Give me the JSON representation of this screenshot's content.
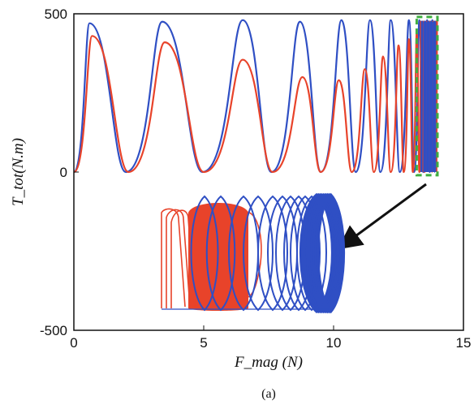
{
  "chart_data": {
    "type": "line",
    "caption": "(a)",
    "xlabel": "F_mag (N)",
    "ylabel": "T_tot(N.m)",
    "xlim": [
      0,
      15
    ],
    "ylim": [
      -500,
      500
    ],
    "x_ticks": [
      "0",
      "5",
      "10",
      "15"
    ],
    "y_ticks": [
      "500",
      "0",
      "-500"
    ],
    "grid": false,
    "series": [
      {
        "color": "#2f4fc4",
        "peaks_x": [
          0.6,
          3.4,
          6.5,
          8.7,
          10.3,
          11.4,
          12.2,
          12.9,
          13.3,
          13.6,
          13.8
        ],
        "peaks_y": [
          470,
          475,
          480,
          475,
          480,
          480,
          480,
          480,
          480,
          480,
          480
        ],
        "valleys_y": [
          0,
          0,
          0,
          0,
          0,
          0,
          0,
          0,
          0,
          0,
          0
        ]
      },
      {
        "color": "#e8432a",
        "peaks_x": [
          0.7,
          3.5,
          6.5,
          8.8,
          10.2,
          11.2,
          11.9,
          12.5,
          12.9,
          13.2,
          13.4,
          13.6
        ],
        "peaks_y": [
          430,
          410,
          355,
          300,
          290,
          325,
          365,
          400,
          420,
          440,
          450,
          460
        ],
        "valleys_y": [
          0,
          0,
          0,
          0,
          0,
          0,
          0,
          0,
          0,
          0,
          0,
          0
        ]
      }
    ],
    "zoom_box": {
      "x": [
        13.2,
        14.0
      ],
      "y": [
        -10,
        490
      ],
      "color": "#3fae3f"
    }
  }
}
